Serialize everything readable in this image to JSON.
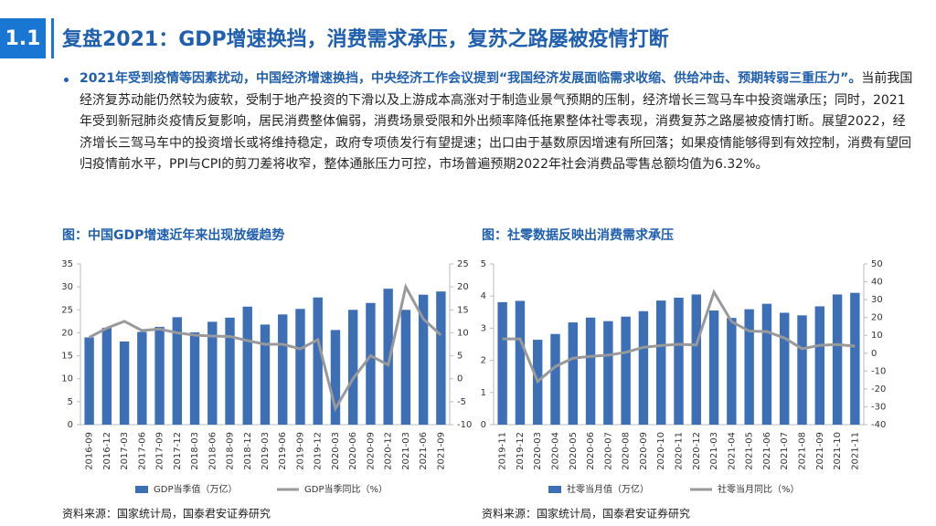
{
  "header": {
    "number": "1.1",
    "title": "复盘2021：GDP增速换挡，消费需求承压，复苏之路屡被疫情打断"
  },
  "body": {
    "highlight": "2021年受到疫情等因素扰动，中国经济增速换挡，中央经济工作会议提到“我国经济发展面临需求收缩、供给冲击、预期转弱三重压力”。",
    "text": "当前我国经济复苏动能仍然较为疲软，受制于地产投资的下滑以及上游成本高涨对于制造业景气预期的压制，经济增长三驾马车中投资端承压；同时，2021年受到新冠肺炎疫情反复影响，居民消费整体偏弱，消费场景受限和外出频率降低拖累整体社零表现，消费复苏之路屡被疫情打断。展望2022，经济增长三驾马车中的投资增长或将维持稳定，政府专项债发行有望提速；出口由于基数原因增速有所回落；如果疫情能够得到有效控制，消费有望回归疫情前水平，PPI与CPI的剪刀差将收窄，整体通胀压力可控，市场普遍预期2022年社会消费品零售总额均值为6.32%。"
  },
  "chart_data": [
    {
      "type": "bar-line",
      "title": "图：中国GDP增速近年来出现放缓趋势",
      "source": "资料来源：国家统计局，国泰君安证券研究",
      "categories": [
        "2016-09",
        "2016-12",
        "2017-03",
        "2017-06",
        "2017-09",
        "2017-12",
        "2018-03",
        "2018-06",
        "2018-09",
        "2018-12",
        "2019-03",
        "2019-06",
        "2019-09",
        "2019-12",
        "2020-03",
        "2020-06",
        "2020-09",
        "2020-12",
        "2021-03",
        "2021-06",
        "2021-09"
      ],
      "series": [
        {
          "name": "GDP当季值（万亿）",
          "type": "bar",
          "color": "#3d6fb6",
          "values": [
            19.0,
            21.1,
            18.1,
            20.2,
            21.3,
            23.4,
            20.1,
            22.4,
            23.3,
            25.7,
            21.8,
            24.0,
            25.2,
            27.7,
            20.6,
            25.0,
            26.5,
            29.6,
            25.0,
            28.3,
            29.0
          ]
        },
        {
          "name": "GDP当季同比（%）",
          "type": "line",
          "axis": "y2",
          "color": "#999999",
          "values": [
            9.0,
            11.0,
            12.5,
            10.5,
            10.8,
            10.0,
            9.5,
            9.3,
            9.2,
            8.3,
            7.5,
            7.5,
            6.5,
            8.5,
            -6.5,
            0.0,
            5.0,
            3.0,
            20.0,
            13.0,
            9.5
          ]
        }
      ],
      "ylim": [
        0,
        35
      ],
      "yticks": [
        0,
        5,
        10,
        15,
        20,
        25,
        30,
        35
      ],
      "y2lim": [
        -10,
        25
      ],
      "y2ticks": [
        -10,
        -5,
        0,
        5,
        10,
        15,
        20,
        25
      ]
    },
    {
      "type": "bar-line",
      "title": "图：社零数据反映出消费需求承压",
      "source": "资料来源：国家统计局，国泰君安证券研究",
      "categories": [
        "2019-11",
        "2019-12",
        "2020-03",
        "2020-04",
        "2020-05",
        "2020-06",
        "2020-07",
        "2020-08",
        "2020-09",
        "2020-10",
        "2020-11",
        "2020-12",
        "2021-03",
        "2021-04",
        "2021-05",
        "2021-06",
        "2021-07",
        "2021-08",
        "2021-09",
        "2021-10",
        "2021-11"
      ],
      "series": [
        {
          "name": "社零当月值（万亿）",
          "type": "bar",
          "color": "#3d6fb6",
          "values": [
            3.81,
            3.85,
            2.64,
            2.82,
            3.18,
            3.33,
            3.22,
            3.36,
            3.53,
            3.86,
            3.95,
            4.05,
            3.55,
            3.32,
            3.59,
            3.76,
            3.48,
            3.4,
            3.68,
            4.05,
            4.1
          ]
        },
        {
          "name": "社零当月同比（%）",
          "type": "line",
          "axis": "y2",
          "color": "#999999",
          "values": [
            8.0,
            8.0,
            -15.8,
            -7.5,
            -2.8,
            -1.8,
            -1.1,
            0.5,
            3.3,
            4.3,
            5.0,
            4.6,
            34.2,
            17.7,
            12.4,
            12.1,
            8.5,
            2.5,
            4.4,
            4.9,
            3.9
          ]
        }
      ],
      "ylim": [
        0,
        5
      ],
      "yticks": [
        0,
        1,
        2,
        3,
        4,
        5
      ],
      "y2lim": [
        -40,
        50
      ],
      "y2ticks": [
        -40,
        -30,
        -20,
        -10,
        0,
        10,
        20,
        30,
        40,
        50
      ]
    }
  ]
}
